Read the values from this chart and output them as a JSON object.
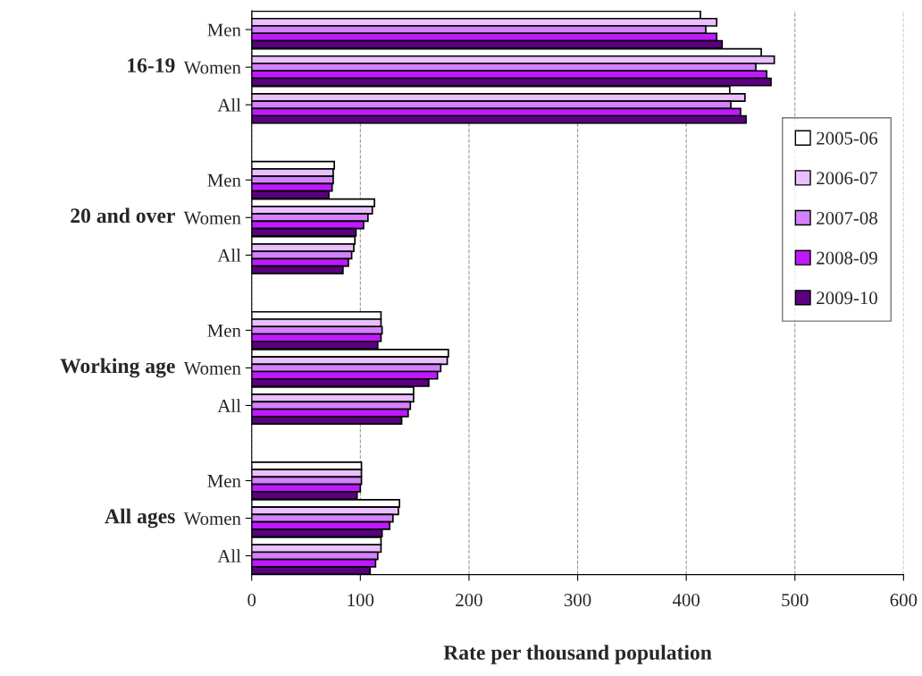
{
  "chart_data": {
    "type": "bar",
    "orientation": "horizontal",
    "xlabel": "Rate per thousand population",
    "categories": [
      "Men",
      "Women",
      "All",
      null,
      "Men",
      "Women",
      "All",
      null,
      "Men",
      "Women",
      "All",
      null,
      "Men",
      "Women",
      "All"
    ],
    "annotations": [
      "16-19",
      "20 and over",
      "Working age",
      "All ages"
    ],
    "series": [
      {
        "name": "2005-06",
        "color": "#ffffff",
        "values": [
          413,
          469,
          440,
          null,
          76,
          113,
          95,
          null,
          119,
          181,
          149,
          null,
          101,
          136,
          119
        ]
      },
      {
        "name": "2006-07",
        "color": "#eabfff",
        "values": [
          428,
          481,
          454,
          null,
          75,
          111,
          94,
          null,
          119,
          180,
          149,
          null,
          101,
          135,
          119
        ]
      },
      {
        "name": "2007-08",
        "color": "#d580ff",
        "values": [
          418,
          464,
          441,
          null,
          75,
          107,
          92,
          null,
          120,
          174,
          146,
          null,
          101,
          130,
          116
        ]
      },
      {
        "name": "2008-09",
        "color": "#bf1aff",
        "values": [
          428,
          474,
          450,
          null,
          74,
          103,
          89,
          null,
          119,
          171,
          144,
          null,
          100,
          127,
          114
        ]
      },
      {
        "name": "2009-10",
        "color": "#5a0080",
        "values": [
          433,
          478,
          455,
          null,
          71,
          96,
          84,
          null,
          116,
          163,
          138,
          null,
          97,
          120,
          109
        ]
      }
    ],
    "xlim": [
      0,
      600
    ],
    "xticks": [
      0,
      100,
      200,
      300,
      400,
      500,
      600
    ],
    "grid": "x",
    "legend": "right"
  }
}
